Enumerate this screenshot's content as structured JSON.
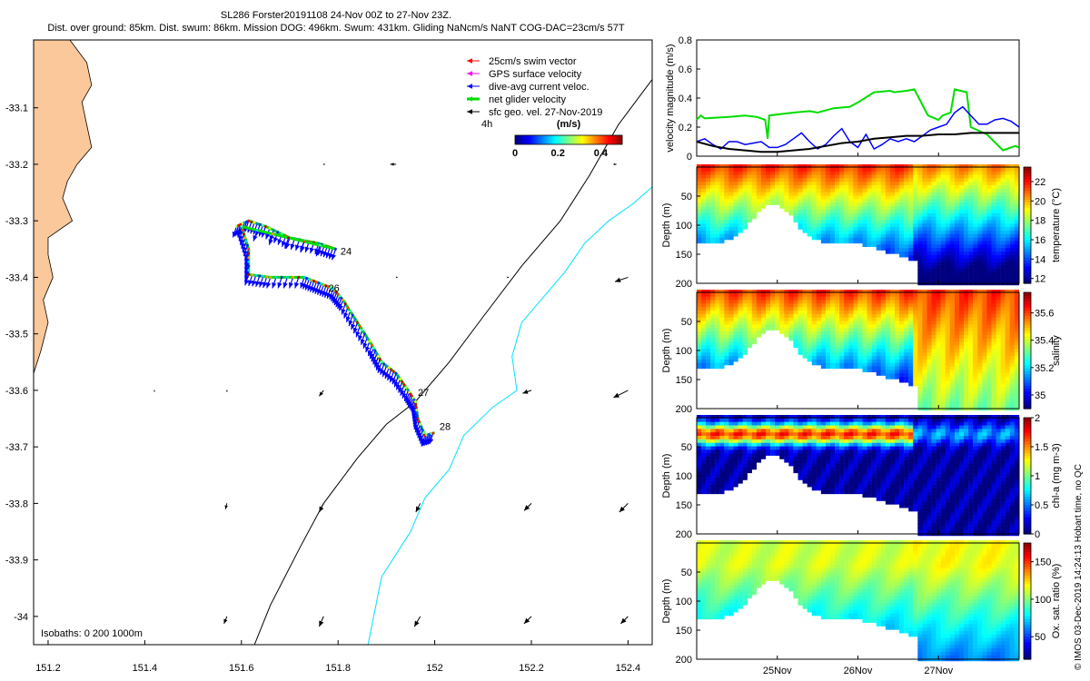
{
  "header": {
    "line1": "SL286 Forster20191108 24-Nov 00Z to 27-Nov 23Z.",
    "line2": "Dist. over ground: 85km. Dist. swum: 86km. Mission DOG: 496km. Swum: 431km. Gliding NaNcm/s NaNT COG-DAC=23cm/s 57T"
  },
  "side_note": "© IMOS 03-Dec-2019 14:24:13 Hobart time, no QC",
  "colors": {
    "land": "#fac89a",
    "swim": "#ff0000",
    "gps": "#ff00ff",
    "dac": "#0000ff",
    "net": "#00dd00",
    "sfc": "#000000",
    "isobath200": "#000000",
    "isobath1000": "#00e0ff"
  },
  "chart_data": [
    {
      "type": "map",
      "id": "track-map",
      "xlim": [
        151.17,
        152.45
      ],
      "ylim": [
        -34.05,
        -32.98
      ],
      "x_ticks": [
        151.2,
        151.4,
        151.6,
        151.8,
        152,
        152.2,
        152.4
      ],
      "x_tick_labels": [
        "151.2",
        "151.4",
        "151.6",
        "151.8",
        "152",
        "152.2",
        "152.4"
      ],
      "y_ticks": [
        -33.1,
        -33.2,
        -33.3,
        -33.4,
        -33.5,
        -33.6,
        -33.7,
        -33.8,
        -33.9,
        -34
      ],
      "y_tick_labels": [
        "-33.1",
        "-33.2",
        "-33.3",
        "-33.4",
        "-33.5",
        "-33.6",
        "-33.7",
        "-33.8",
        "-33.9",
        "-34"
      ],
      "legend": [
        {
          "label": "25cm/s swim vector",
          "color": "#ff0000",
          "style": "arrow"
        },
        {
          "label": "GPS surface velocity",
          "color": "#ff00ff",
          "style": "arrow"
        },
        {
          "label": "dive-avg current veloc.",
          "color": "#0000ff",
          "style": "arrow"
        },
        {
          "label": "net glider velocity",
          "color": "#00dd00",
          "style": "thick-arrow"
        },
        {
          "label": "sfc geo. vel. 27-Nov-2019",
          "color": "#000000",
          "style": "arrow"
        }
      ],
      "legend_placement": "top-right",
      "scale_label": "4h",
      "colorbar": {
        "title": "(m/s)",
        "ticks": [
          0,
          0.2,
          0.4
        ],
        "tick_labels": [
          "0",
          "0.2",
          "0.4"
        ],
        "range": [
          0,
          0.5
        ]
      },
      "isobath_label": "Isobaths: 0   200  1000m",
      "coastline": [
        [
          151.17,
          -32.98
        ],
        [
          151.245,
          -32.98
        ],
        [
          151.28,
          -33.02
        ],
        [
          151.29,
          -33.06
        ],
        [
          151.27,
          -33.09
        ],
        [
          151.28,
          -33.13
        ],
        [
          151.29,
          -33.17
        ],
        [
          151.26,
          -33.2
        ],
        [
          151.24,
          -33.23
        ],
        [
          151.23,
          -33.26
        ],
        [
          151.25,
          -33.3
        ],
        [
          151.2,
          -33.33
        ],
        [
          151.2,
          -33.36
        ],
        [
          151.21,
          -33.4
        ],
        [
          151.19,
          -33.44
        ],
        [
          151.2,
          -33.48
        ],
        [
          151.185,
          -33.53
        ],
        [
          151.17,
          -33.57
        ],
        [
          151.17,
          -34.05
        ]
      ],
      "isobath_200": [
        [
          151.627,
          -34.05
        ],
        [
          151.66,
          -33.98
        ],
        [
          151.72,
          -33.88
        ],
        [
          151.77,
          -33.8
        ],
        [
          151.84,
          -33.72
        ],
        [
          151.9,
          -33.66
        ],
        [
          151.96,
          -33.62
        ],
        [
          152.03,
          -33.55
        ],
        [
          152.1,
          -33.47
        ],
        [
          152.18,
          -33.38
        ],
        [
          152.26,
          -33.3
        ],
        [
          152.32,
          -33.22
        ],
        [
          152.38,
          -33.13
        ],
        [
          152.45,
          -33.05
        ]
      ],
      "isobath_1000": [
        [
          151.862,
          -34.05
        ],
        [
          151.89,
          -33.93
        ],
        [
          151.95,
          -33.85
        ],
        [
          151.98,
          -33.79
        ],
        [
          152.03,
          -33.74
        ],
        [
          152.06,
          -33.68
        ],
        [
          152.12,
          -33.63
        ],
        [
          152.17,
          -33.6
        ],
        [
          152.16,
          -33.54
        ],
        [
          152.18,
          -33.48
        ],
        [
          152.22,
          -33.44
        ],
        [
          152.27,
          -33.39
        ],
        [
          152.31,
          -33.34
        ],
        [
          152.36,
          -33.3
        ],
        [
          152.41,
          -33.27
        ],
        [
          152.45,
          -33.24
        ]
      ],
      "track": [
        [
          151.59,
          -33.31
        ],
        [
          151.615,
          -33.3
        ],
        [
          151.65,
          -33.31
        ],
        [
          151.7,
          -33.33
        ],
        [
          151.76,
          -33.34
        ],
        [
          151.795,
          -33.35
        ],
        [
          151.6,
          -33.31
        ],
        [
          151.615,
          -33.35
        ],
        [
          151.615,
          -33.395
        ],
        [
          151.66,
          -33.4
        ],
        [
          151.73,
          -33.4
        ],
        [
          151.76,
          -33.41
        ],
        [
          151.79,
          -33.42
        ],
        [
          151.81,
          -33.44
        ],
        [
          151.84,
          -33.48
        ],
        [
          151.87,
          -33.52
        ],
        [
          151.89,
          -33.55
        ],
        [
          151.92,
          -33.57
        ],
        [
          151.945,
          -33.6
        ],
        [
          151.96,
          -33.62
        ],
        [
          151.965,
          -33.65
        ],
        [
          151.98,
          -33.68
        ],
        [
          152.0,
          -33.675
        ]
      ],
      "day_labels": [
        {
          "lon": 151.805,
          "lat": -33.36,
          "text": "24"
        },
        {
          "lon": 151.78,
          "lat": -33.425,
          "text": "26"
        },
        {
          "lon": 151.965,
          "lat": -33.61,
          "text": "27"
        },
        {
          "lon": 152.01,
          "lat": -33.67,
          "text": "28"
        }
      ],
      "sfc_vectors": [
        {
          "lon": 151.92,
          "lat": -33.2,
          "u": -0.04,
          "v": 0.0
        },
        {
          "lon": 152.37,
          "lat": -33.2,
          "u": 0.02,
          "v": 0.0
        },
        {
          "lon": 151.77,
          "lat": -33.2,
          "u": 0.01,
          "v": 0.0
        },
        {
          "lon": 151.92,
          "lat": -33.4,
          "u": 0.01,
          "v": 0.0
        },
        {
          "lon": 152.15,
          "lat": -33.4,
          "u": 0.01,
          "v": 0.0
        },
        {
          "lon": 152.4,
          "lat": -33.4,
          "u": -0.09,
          "v": -0.03
        },
        {
          "lon": 151.42,
          "lat": -33.6,
          "u": 0.0,
          "v": -0.01
        },
        {
          "lon": 151.57,
          "lat": -33.6,
          "u": 0.0,
          "v": -0.01
        },
        {
          "lon": 151.77,
          "lat": -33.6,
          "u": -0.03,
          "v": -0.04
        },
        {
          "lon": 152.2,
          "lat": -33.6,
          "u": -0.06,
          "v": -0.02
        },
        {
          "lon": 152.4,
          "lat": -33.6,
          "u": -0.1,
          "v": -0.05
        },
        {
          "lon": 151.57,
          "lat": -33.8,
          "u": -0.01,
          "v": -0.04
        },
        {
          "lon": 151.77,
          "lat": -33.8,
          "u": -0.03,
          "v": -0.06
        },
        {
          "lon": 151.97,
          "lat": -33.8,
          "u": -0.03,
          "v": -0.06
        },
        {
          "lon": 152.2,
          "lat": -33.8,
          "u": -0.05,
          "v": -0.05
        },
        {
          "lon": 152.4,
          "lat": -33.8,
          "u": -0.06,
          "v": -0.06
        },
        {
          "lon": 151.57,
          "lat": -34.0,
          "u": -0.02,
          "v": -0.05
        },
        {
          "lon": 151.77,
          "lat": -34.0,
          "u": -0.03,
          "v": -0.07
        },
        {
          "lon": 151.97,
          "lat": -34.0,
          "u": -0.04,
          "v": -0.07
        },
        {
          "lon": 152.2,
          "lat": -34.0,
          "u": -0.05,
          "v": -0.05
        },
        {
          "lon": 152.4,
          "lat": -34.0,
          "u": -0.05,
          "v": -0.05
        }
      ]
    },
    {
      "type": "line",
      "id": "velocity-magnitude",
      "ylabel": "velocity magnitude (m/s)",
      "xlim": [
        24.0,
        28.0
      ],
      "ylim": [
        0,
        0.8
      ],
      "y_ticks": [
        0,
        0.2,
        0.4,
        0.6,
        0.8
      ],
      "y_tick_labels": [
        "0",
        "0.2",
        "0.4",
        "0.6",
        "0.8"
      ],
      "series": [
        {
          "name": "net glider velocity",
          "color": "#00dd00",
          "x": [
            24.0,
            24.05,
            24.1,
            24.4,
            24.6,
            24.75,
            24.85,
            24.88,
            24.9,
            25.2,
            25.4,
            25.5,
            25.7,
            25.9,
            26.0,
            26.2,
            26.4,
            26.45,
            26.6,
            26.7,
            26.85,
            26.87,
            27.0,
            27.05,
            27.15,
            27.2,
            27.35,
            27.4,
            27.6,
            27.8,
            27.95,
            28.0
          ],
          "y": [
            0.25,
            0.28,
            0.26,
            0.27,
            0.28,
            0.27,
            0.25,
            0.12,
            0.28,
            0.3,
            0.31,
            0.3,
            0.33,
            0.34,
            0.37,
            0.44,
            0.45,
            0.44,
            0.45,
            0.46,
            0.3,
            0.28,
            0.25,
            0.28,
            0.3,
            0.46,
            0.44,
            0.2,
            0.15,
            0.04,
            0.07,
            0.06
          ],
          "lw": 2
        },
        {
          "name": "dive-avg current veloc.",
          "color": "#0000ff",
          "x": [
            24.0,
            24.1,
            24.2,
            24.3,
            24.4,
            24.5,
            24.6,
            24.7,
            24.8,
            24.9,
            25.0,
            25.1,
            25.2,
            25.3,
            25.4,
            25.5,
            25.6,
            25.7,
            25.8,
            25.9,
            26.0,
            26.1,
            26.2,
            26.3,
            26.4,
            26.5,
            26.6,
            26.7,
            26.8,
            26.9,
            27.0,
            27.1,
            27.2,
            27.3,
            27.4,
            27.5,
            27.6,
            27.7,
            27.8,
            27.9,
            28.0
          ],
          "y": [
            0.1,
            0.12,
            0.08,
            0.05,
            0.1,
            0.1,
            0.08,
            0.09,
            0.1,
            0.06,
            0.06,
            0.08,
            0.12,
            0.16,
            0.1,
            0.05,
            0.08,
            0.14,
            0.19,
            0.1,
            0.06,
            0.15,
            0.05,
            0.08,
            0.12,
            0.1,
            0.12,
            0.1,
            0.14,
            0.18,
            0.2,
            0.22,
            0.3,
            0.34,
            0.28,
            0.22,
            0.22,
            0.25,
            0.26,
            0.24,
            0.2
          ],
          "lw": 1.5
        },
        {
          "name": "sfc geo. vel.",
          "color": "#000000",
          "x": [
            24.0,
            24.2,
            24.4,
            24.6,
            24.8,
            25.0,
            25.2,
            25.4,
            25.6,
            25.8,
            26.0,
            26.2,
            26.4,
            26.6,
            26.8,
            27.0,
            27.2,
            27.4,
            27.6,
            27.8,
            28.0
          ],
          "y": [
            0.1,
            0.07,
            0.05,
            0.04,
            0.03,
            0.03,
            0.04,
            0.05,
            0.07,
            0.09,
            0.1,
            0.12,
            0.13,
            0.14,
            0.14,
            0.15,
            0.15,
            0.16,
            0.16,
            0.16,
            0.16
          ],
          "lw": 2
        }
      ]
    },
    {
      "type": "heatmap",
      "id": "temperature-section",
      "ylabel": "Depth (m)",
      "ylim": [
        0,
        200
      ],
      "y_ticks": [
        50,
        100,
        150,
        200
      ],
      "y_tick_labels": [
        "50",
        "100",
        "150",
        "200"
      ],
      "colorbar_label": "temperature (°C)",
      "clim": [
        11.5,
        23.5
      ],
      "cb_ticks": [
        12,
        14,
        16,
        18,
        20,
        22
      ],
      "cb_tick_labels": [
        "12",
        "14",
        "16",
        "18",
        "20",
        "22"
      ],
      "surface_value": 21.5,
      "bottom_value": 13.0,
      "cm": "jet"
    },
    {
      "type": "heatmap",
      "id": "salinity-section",
      "ylabel": "Depth (m)",
      "ylim": [
        0,
        200
      ],
      "y_ticks": [
        50,
        100,
        150,
        200
      ],
      "y_tick_labels": [
        "50",
        "100",
        "150",
        "200"
      ],
      "colorbar_label": "salinity",
      "clim": [
        34.9,
        35.75
      ],
      "cb_ticks": [
        35,
        35.2,
        35.4,
        35.6
      ],
      "cb_tick_labels": [
        "35",
        "35.2",
        "35.4",
        "35.6"
      ],
      "surface_value": 35.6,
      "bottom_value": 35.15,
      "cm": "jet"
    },
    {
      "type": "heatmap",
      "id": "chla-section",
      "ylabel": "Depth (m)",
      "ylim": [
        0,
        200
      ],
      "y_ticks": [
        50,
        100,
        150,
        200
      ],
      "y_tick_labels": [
        "50",
        "100",
        "150",
        "200"
      ],
      "colorbar_label": "chl-a (mg m-3)",
      "clim": [
        0,
        2
      ],
      "cb_ticks": [
        0,
        0.5,
        1,
        1.5,
        2
      ],
      "cb_tick_labels": [
        "0",
        "0.5",
        "1",
        "1.5",
        "2"
      ],
      "surface_value": 0.6,
      "bottom_value": 0.05,
      "cm": "jet"
    },
    {
      "type": "heatmap",
      "id": "oxygen-section",
      "ylabel": "Depth (m)",
      "ylim": [
        0,
        200
      ],
      "y_ticks": [
        50,
        100,
        150,
        200
      ],
      "y_tick_labels": [
        "50",
        "100",
        "150",
        "200"
      ],
      "colorbar_label": "Ox. sat. ratio (%)",
      "clim": [
        20,
        175
      ],
      "cb_ticks": [
        50,
        100,
        150
      ],
      "cb_tick_labels": [
        "50",
        "100",
        "150"
      ],
      "surface_value": 110,
      "bottom_value": 80,
      "cm": "jet"
    }
  ],
  "time_axis": {
    "xlim": [
      24.0,
      28.0
    ],
    "ticks": [
      25,
      26,
      27
    ],
    "tick_labels": [
      "25Nov",
      "26Nov",
      "27Nov"
    ]
  }
}
